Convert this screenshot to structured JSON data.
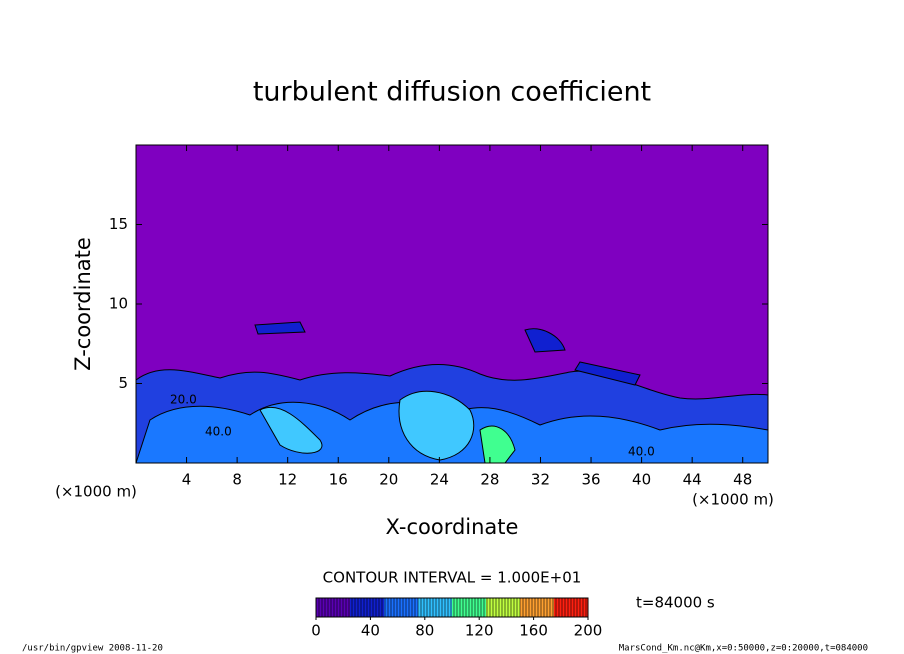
{
  "chart_data": {
    "type": "contour",
    "title": "turbulent diffusion coefficient",
    "xlabel": "X-coordinate",
    "ylabel": "Z-coordinate",
    "x_unit": "(×1000 m)",
    "xlim": [
      0,
      50
    ],
    "xticks": [
      4,
      8,
      12,
      16,
      20,
      24,
      28,
      32,
      36,
      40,
      44,
      48
    ],
    "ylim": [
      0,
      20
    ],
    "yticks": [
      5,
      10,
      15
    ],
    "contour_labels": [
      "20.0",
      "40.0",
      "40.0"
    ],
    "contour_interval": "CONTOUR INTERVAL = 1.000E+01",
    "time_label": "t=84000 s",
    "background_color": "#7f00c0",
    "colorbar": {
      "lim": [
        0,
        200
      ],
      "ticks": [
        0,
        40,
        80,
        120,
        160,
        200
      ],
      "colors": [
        "#5a00b4",
        "#1020d0",
        "#1a70ff",
        "#30c0ff",
        "#40ff90",
        "#c0ff40",
        "#ffa030",
        "#ff2010"
      ]
    },
    "footer_left": "/usr/bin/gpview  2008-11-20",
    "footer_right": "MarsCond_Km.nc@Km,x=0:50000,z=0:20000,t=084000"
  }
}
